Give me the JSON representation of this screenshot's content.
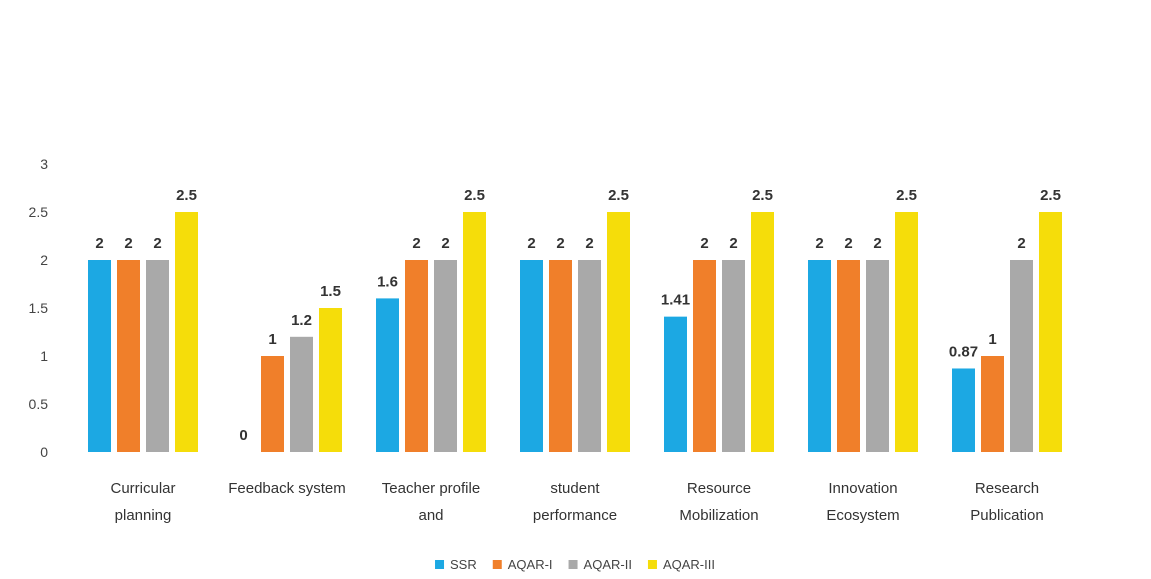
{
  "chart_data": {
    "type": "bar",
    "title": "",
    "xlabel": "",
    "ylabel": "",
    "ylim": [
      0,
      3
    ],
    "yticks": [
      "0",
      "0.5",
      "1",
      "1.5",
      "2",
      "2.5",
      "3"
    ],
    "grid": false,
    "legend_position": "bottom",
    "categories": [
      [
        "Curricular",
        "planning"
      ],
      [
        "Feedback system"
      ],
      [
        "Teacher profile",
        "and"
      ],
      [
        "student",
        "performance"
      ],
      [
        "Resource",
        "Mobilization"
      ],
      [
        "Innovation",
        "Ecosystem"
      ],
      [
        "Research",
        "Publication"
      ]
    ],
    "series": [
      {
        "name": "SSR",
        "color": "#1CA8E3",
        "values": [
          2,
          0,
          1.6,
          2,
          1.41,
          2,
          0.87
        ],
        "labels": [
          "2",
          "0",
          "1.6",
          "2",
          "1.41",
          "2",
          "0.87"
        ]
      },
      {
        "name": "AQAR-I",
        "color": "#F07F2A",
        "values": [
          2,
          1,
          2,
          2,
          2,
          2,
          1
        ],
        "labels": [
          "2",
          "1",
          "2",
          "2",
          "2",
          "2",
          "1"
        ]
      },
      {
        "name": "AQAR-II",
        "color": "#A9A9A9",
        "values": [
          2,
          1.2,
          2,
          2,
          2,
          2,
          2
        ],
        "labels": [
          "2",
          "1.2",
          "2",
          "2",
          "2",
          "2",
          "2"
        ]
      },
      {
        "name": "AQAR-III",
        "color": "#F5DD0A",
        "values": [
          2.5,
          1.5,
          2.5,
          2.5,
          2.5,
          2.5,
          2.5
        ],
        "labels": [
          "2.5",
          "1.5",
          "2.5",
          "2.5",
          "2.5",
          "2.5",
          "2.5"
        ]
      }
    ]
  }
}
